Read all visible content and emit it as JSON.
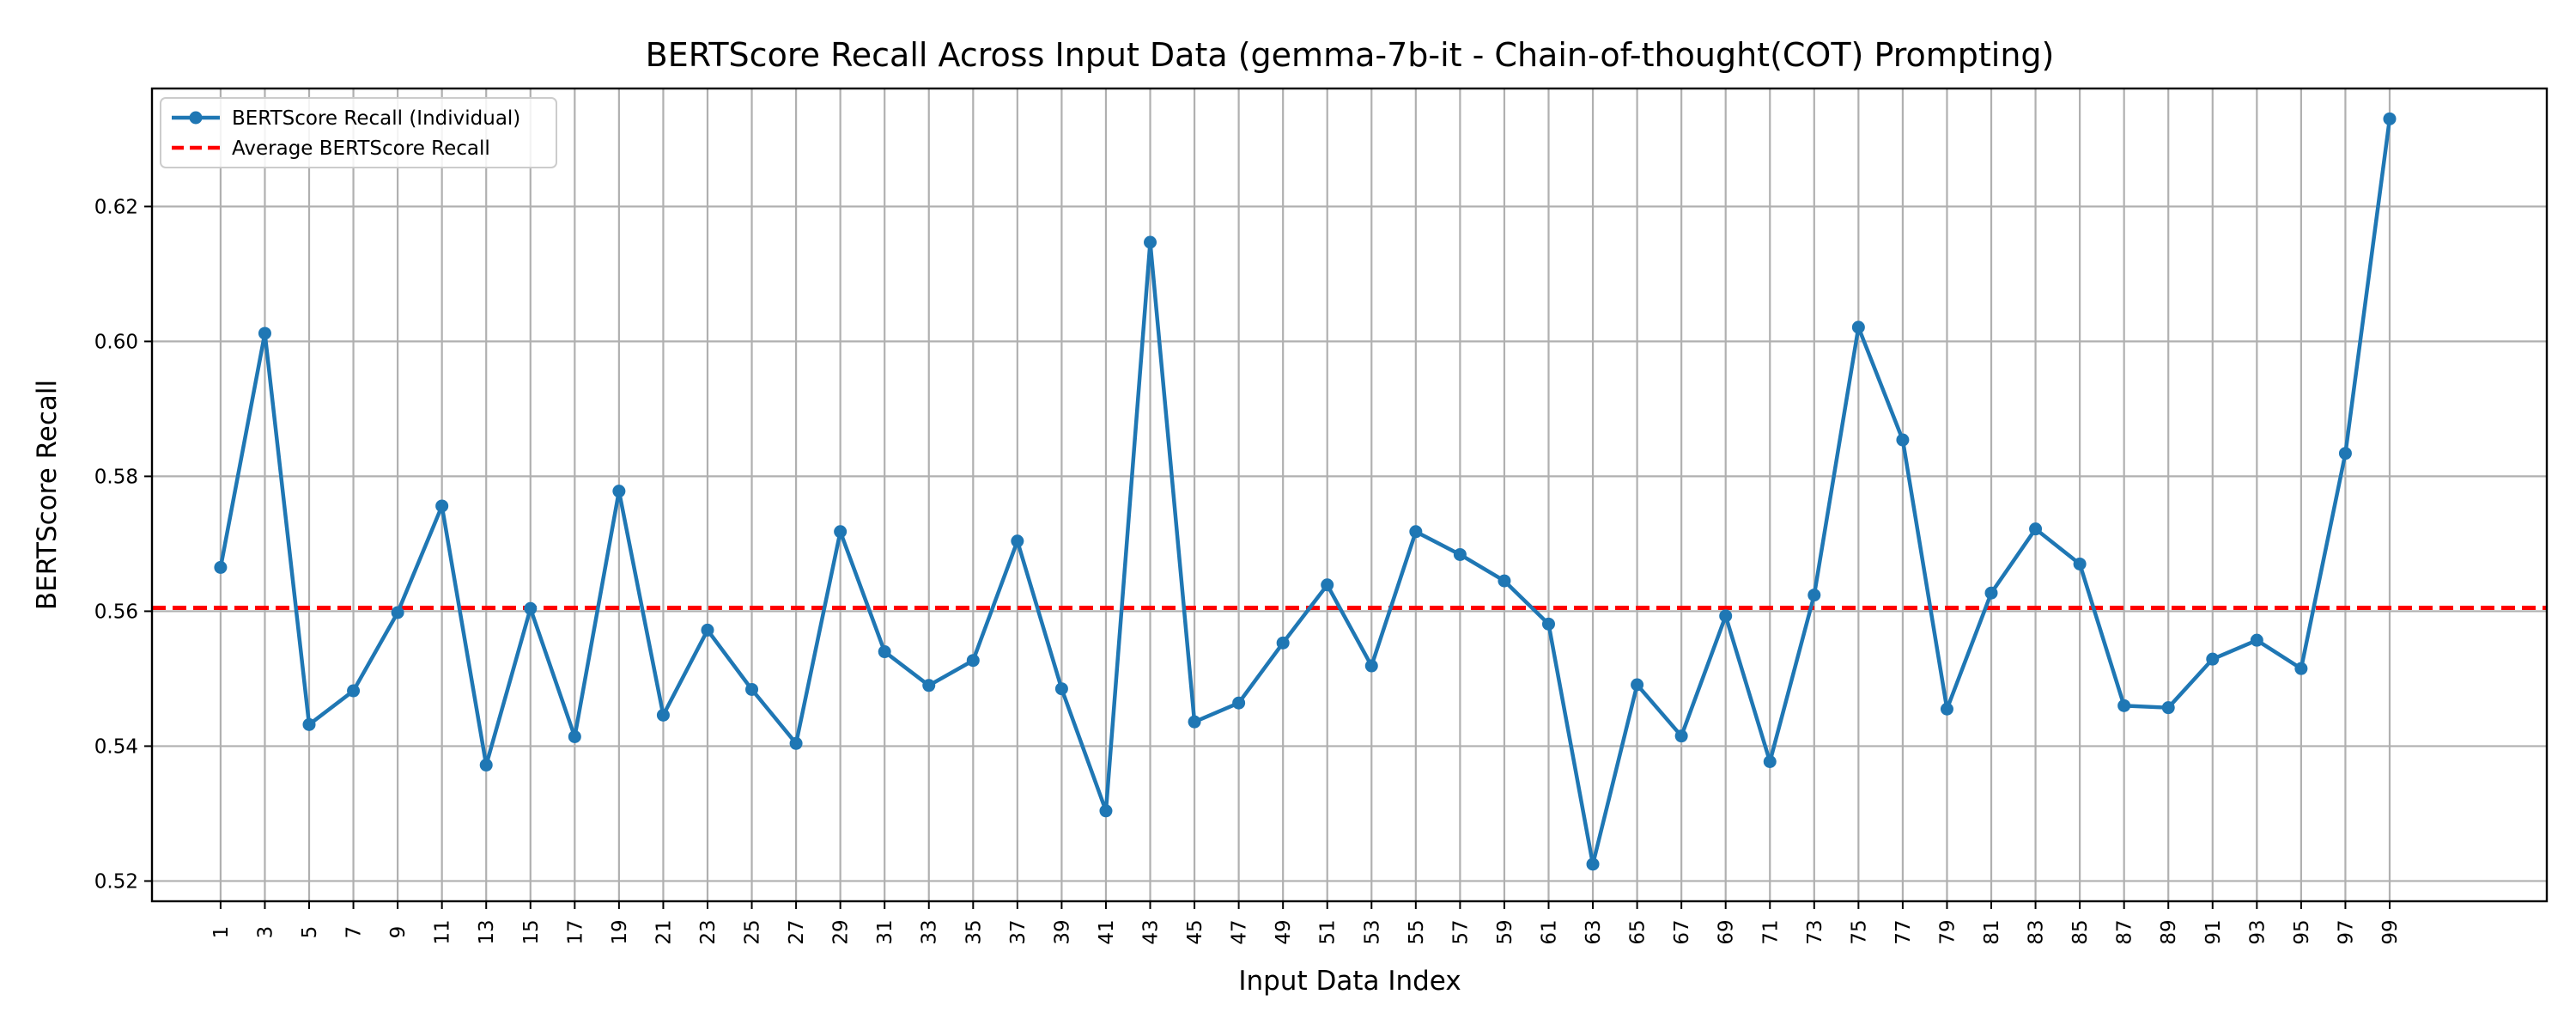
{
  "chart_data": {
    "type": "line",
    "title": "BERTScore Recall Across Input Data (gemma-7b-it - Chain-of-thought(COT) Prompting)",
    "xlabel": "Input Data Index",
    "ylabel": "BERTScore Recall",
    "xlim": [
      -2.1,
      106.1
    ],
    "ylim": [
      0.517,
      0.6375
    ],
    "yticks": [
      0.52,
      0.54,
      0.56,
      0.58,
      0.6,
      0.62
    ],
    "ytick_labels": [
      "0.52",
      "0.54",
      "0.56",
      "0.58",
      "0.60",
      "0.62"
    ],
    "xticks": [
      1,
      3,
      5,
      7,
      9,
      11,
      13,
      15,
      17,
      19,
      21,
      23,
      25,
      27,
      29,
      31,
      33,
      35,
      37,
      39,
      41,
      43,
      45,
      47,
      49,
      51,
      53,
      55,
      57,
      59,
      61,
      63,
      65,
      67,
      69,
      71,
      73,
      75,
      77,
      79,
      81,
      83,
      85,
      87,
      89,
      91,
      93,
      95,
      97,
      99
    ],
    "grid": true,
    "legend_position": "top-left",
    "series": [
      {
        "name": "BERTScore Recall (Individual)",
        "color": "#1f77b4",
        "style": "solid-line-with-markers",
        "x": [
          1,
          3,
          5,
          7,
          9,
          11,
          13,
          15,
          17,
          19,
          21,
          23,
          25,
          27,
          29,
          31,
          33,
          35,
          37,
          39,
          41,
          43,
          45,
          47,
          49,
          51,
          53,
          55,
          57,
          59,
          61,
          63,
          65,
          67,
          69,
          71,
          73,
          75,
          77,
          79,
          81,
          83,
          85,
          87,
          89,
          91,
          93,
          95,
          97,
          99
        ],
        "y": [
          0.5665,
          0.6012,
          0.5432,
          0.5482,
          0.5598,
          0.5756,
          0.5372,
          0.5604,
          0.5414,
          0.5778,
          0.5446,
          0.5572,
          0.5484,
          0.5404,
          0.5718,
          0.554,
          0.549,
          0.5527,
          0.5704,
          0.5485,
          0.5304,
          0.6147,
          0.5436,
          0.5464,
          0.5553,
          0.5639,
          0.5519,
          0.5718,
          0.5684,
          0.5645,
          0.5581,
          0.5225,
          0.5491,
          0.5415,
          0.5593,
          0.5377,
          0.5624,
          0.6021,
          0.5854,
          0.5455,
          0.5627,
          0.5722,
          0.567,
          0.546,
          0.5457,
          0.5529,
          0.5557,
          0.5515,
          0.5834,
          0.633
        ]
      },
      {
        "name": "Average BERTScore Recall",
        "color": "#ff0000",
        "style": "dashed",
        "value": 0.5605
      }
    ]
  }
}
